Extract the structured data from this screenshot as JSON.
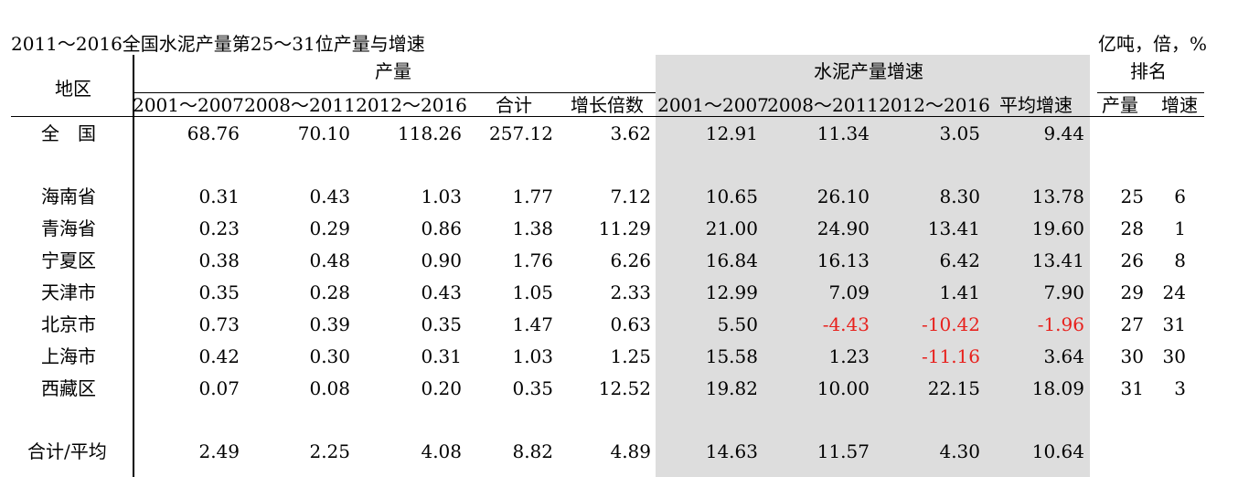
{
  "title": "2011～2016全国水泥产量第25～31位产量与增速",
  "unit": "亿吨，倍，%",
  "headers": {
    "region": "地区",
    "production": "产量",
    "growth": "水泥产量增速",
    "rank": "排名",
    "production_cols": [
      "2001～2007",
      "2008～2011",
      "2012～2016",
      "合计",
      "增长倍数"
    ],
    "growth_cols": [
      "2001～2007",
      "2008～2011",
      "2012～2016",
      "平均增速"
    ],
    "rank_cols": [
      "产量",
      "增速"
    ]
  },
  "national": {
    "name": "全　国",
    "values": [
      "68.76",
      "70.10",
      "118.26",
      "257.12",
      "3.62",
      "12.91",
      "11.34",
      "3.05",
      "9.44"
    ]
  },
  "rows": [
    {
      "name": "海南省",
      "values": [
        "0.31",
        "0.43",
        "1.03",
        "1.77",
        "7.12",
        "10.65",
        "26.10",
        "8.30",
        "13.78",
        "25",
        "6"
      ]
    },
    {
      "name": "青海省",
      "values": [
        "0.23",
        "0.29",
        "0.86",
        "1.38",
        "11.29",
        "21.00",
        "24.90",
        "13.41",
        "19.60",
        "28",
        "1"
      ]
    },
    {
      "name": "宁夏区",
      "values": [
        "0.38",
        "0.48",
        "0.90",
        "1.76",
        "6.26",
        "16.84",
        "16.13",
        "6.42",
        "13.41",
        "26",
        "8"
      ]
    },
    {
      "name": "天津市",
      "values": [
        "0.35",
        "0.28",
        "0.43",
        "1.05",
        "2.33",
        "12.99",
        "7.09",
        "1.41",
        "7.90",
        "29",
        "24"
      ]
    },
    {
      "name": "北京市",
      "values": [
        "0.73",
        "0.39",
        "0.35",
        "1.47",
        "0.63",
        "5.50",
        "-4.43",
        "-10.42",
        "-1.96",
        "27",
        "31"
      ]
    },
    {
      "name": "上海市",
      "values": [
        "0.42",
        "0.30",
        "0.31",
        "1.03",
        "1.25",
        "15.58",
        "1.23",
        "-11.16",
        "3.64",
        "30",
        "30"
      ]
    },
    {
      "name": "西藏区",
      "values": [
        "0.07",
        "0.08",
        "0.20",
        "0.35",
        "12.52",
        "19.82",
        "10.00",
        "22.15",
        "18.09",
        "31",
        "3"
      ]
    }
  ],
  "total": {
    "name": "合计/平均",
    "values": [
      "2.49",
      "2.25",
      "4.08",
      "8.82",
      "4.89",
      "14.63",
      "11.57",
      "4.30",
      "10.64"
    ]
  },
  "colors": {
    "negative": "#e8201c",
    "shade": "#dddddd"
  }
}
